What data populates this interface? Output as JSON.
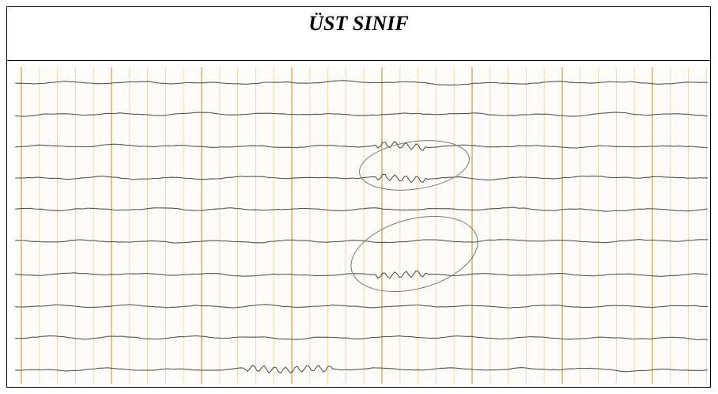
{
  "header": {
    "title": "ÜST SINIF"
  }
}
